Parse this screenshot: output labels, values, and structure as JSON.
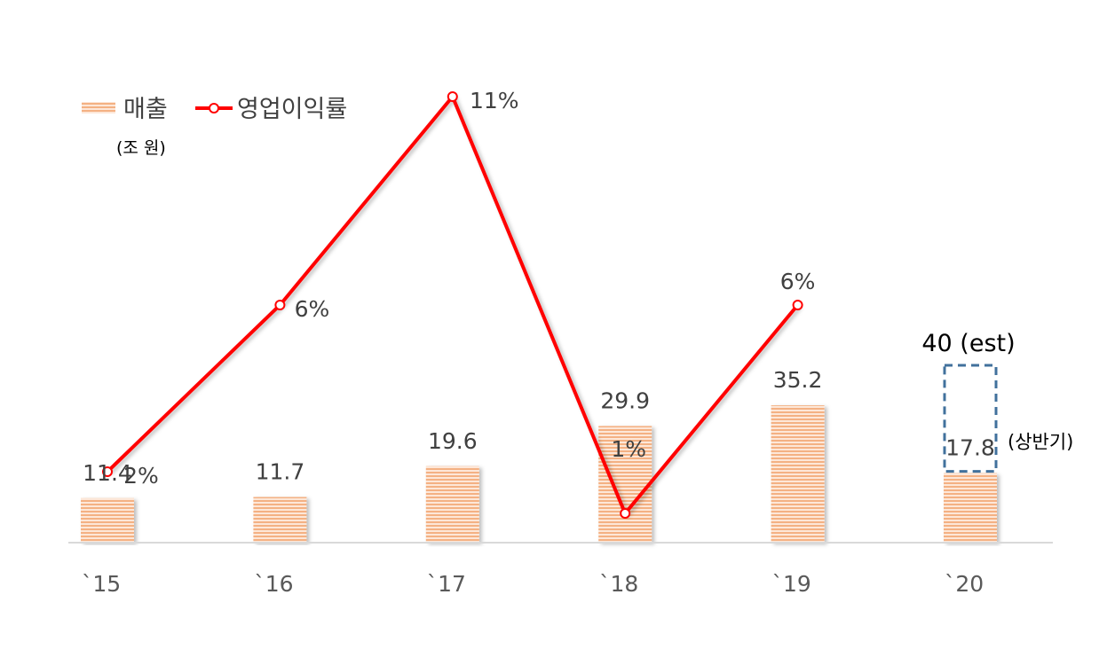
{
  "chart_data": {
    "type": "bar",
    "categories": [
      "`15",
      "`16",
      "`17",
      "`18",
      "`19",
      "`20"
    ],
    "series": [
      {
        "name": "매출",
        "type": "bar",
        "values": [
          11.4,
          11.7,
          19.6,
          29.9,
          35.2,
          17.8
        ],
        "color": "#f4b183"
      },
      {
        "name": "영업이익률",
        "type": "line",
        "values": [
          2,
          6,
          11,
          1,
          6,
          null
        ],
        "labels": [
          "2%",
          "6%",
          "11%",
          "1%",
          "6%",
          ""
        ],
        "color": "#ff0000"
      }
    ],
    "bar_labels": [
      "11.4",
      "11.7",
      "19.6",
      "29.9",
      "35.2",
      "17.8"
    ],
    "estimate": {
      "category": "`20",
      "value": 40,
      "label": "40 (est)",
      "color": "#41719c"
    },
    "note_label": "(상반기)",
    "unit": "(조 원)",
    "legend": {
      "position": "top-left",
      "bar_label": "매출",
      "line_label": "영업이익률"
    },
    "grid": false
  }
}
